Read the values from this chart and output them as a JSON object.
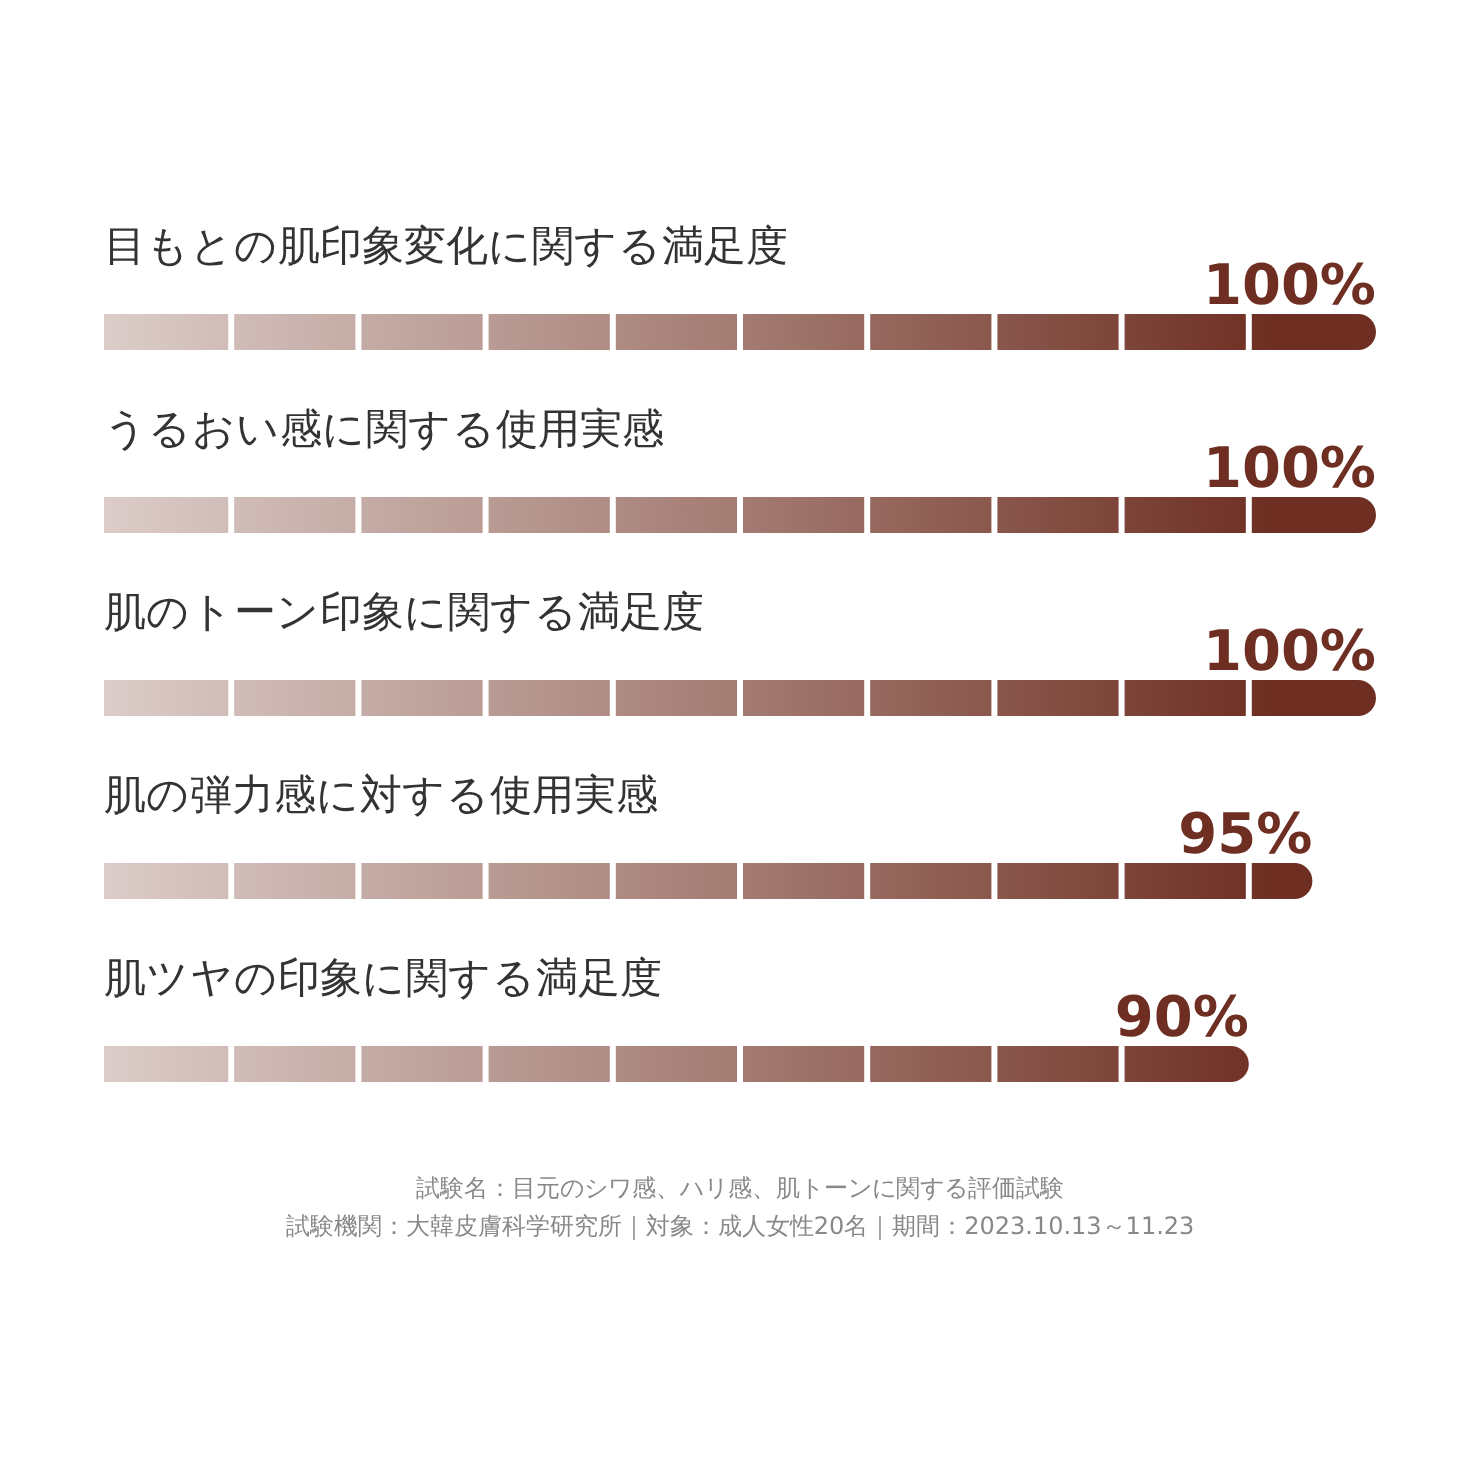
{
  "chart_data": {
    "type": "bar",
    "orientation": "horizontal",
    "categories": [
      "目もとの肌印象変化に関する満足度",
      "うるおい感に関する使用実感",
      "肌のトーン印象に関する満足度",
      "肌の弾力感に対する使用実感",
      "肌ツヤの印象に関する満足度"
    ],
    "values": [
      100,
      100,
      100,
      95,
      90
    ],
    "value_labels": [
      "100%",
      "100%",
      "100%",
      "95%",
      "90%"
    ],
    "color": "#6e2f22",
    "annotations": [
      "試験名：目元のシワ感、ハリ感、肌トーンに関する評価試験",
      "試験機関：大韓皮膚科学研究所｜対象：成人女性20名｜期間：2023.10.13～11.23"
    ]
  }
}
